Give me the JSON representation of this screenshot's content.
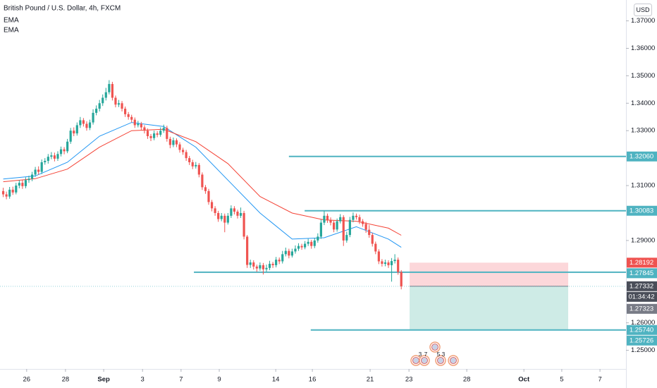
{
  "chart_data": {
    "type": "candlestick",
    "title": "British Pound / U.S. Dollar, 4h, FXCM",
    "indicators": [
      "EMA",
      "EMA"
    ],
    "currency_button": "USD",
    "colors": {
      "up": "#26a69a",
      "down": "#ef5350"
    },
    "xlim": [
      -1,
      194
    ],
    "ylim": [
      1.2432,
      1.3776
    ],
    "xticks": [
      {
        "value": 7.3,
        "label": "26"
      },
      {
        "value": 19.4,
        "label": "28"
      },
      {
        "value": 31.3,
        "label": "Sep"
      },
      {
        "value": 43.4,
        "label": "3"
      },
      {
        "value": 55.4,
        "label": "7"
      },
      {
        "value": 67.3,
        "label": "9"
      },
      {
        "value": 84.9,
        "label": "14"
      },
      {
        "value": 96.3,
        "label": "16"
      },
      {
        "value": 114.3,
        "label": "21"
      },
      {
        "value": 126.4,
        "label": "23"
      },
      {
        "value": 144.4,
        "label": "28"
      },
      {
        "value": 162.2,
        "label": "Oct"
      },
      {
        "value": 174,
        "label": "5"
      },
      {
        "value": 185.9,
        "label": "7"
      }
    ],
    "yticks": [
      {
        "value": 1.37,
        "label": "1.37000"
      },
      {
        "value": 1.36,
        "label": "1.36000"
      },
      {
        "value": 1.35,
        "label": "1.35000"
      },
      {
        "value": 1.34,
        "label": "1.34000"
      },
      {
        "value": 1.33,
        "label": "1.33000"
      },
      {
        "value": 1.31,
        "label": "1.31000"
      },
      {
        "value": 1.29,
        "label": "1.29000"
      },
      {
        "value": 1.26,
        "label": "1.26000"
      },
      {
        "value": 1.25,
        "label": "1.25000"
      }
    ],
    "ohlc": [
      [
        1.308,
        1.3092,
        1.3058,
        1.3068
      ],
      [
        1.3068,
        1.3078,
        1.305,
        1.306
      ],
      [
        1.306,
        1.3095,
        1.3052,
        1.3085
      ],
      [
        1.3085,
        1.3096,
        1.3066,
        1.3075
      ],
      [
        1.3075,
        1.311,
        1.3068,
        1.31
      ],
      [
        1.31,
        1.312,
        1.309,
        1.311
      ],
      [
        1.311,
        1.3122,
        1.3088,
        1.3098
      ],
      [
        1.3098,
        1.313,
        1.309,
        1.312
      ],
      [
        1.312,
        1.3136,
        1.311,
        1.3125
      ],
      [
        1.3125,
        1.315,
        1.3116,
        1.314
      ],
      [
        1.314,
        1.3168,
        1.3132,
        1.3158
      ],
      [
        1.3158,
        1.317,
        1.314,
        1.315
      ],
      [
        1.315,
        1.3195,
        1.3142,
        1.3185
      ],
      [
        1.3185,
        1.32,
        1.3176,
        1.319
      ],
      [
        1.319,
        1.3215,
        1.318,
        1.3205
      ],
      [
        1.3205,
        1.3222,
        1.3196,
        1.321
      ],
      [
        1.321,
        1.322,
        1.3188,
        1.3198
      ],
      [
        1.3198,
        1.3225,
        1.319,
        1.3215
      ],
      [
        1.3215,
        1.3242,
        1.3206,
        1.3232
      ],
      [
        1.3232,
        1.324,
        1.3214,
        1.3225
      ],
      [
        1.3225,
        1.327,
        1.3218,
        1.326
      ],
      [
        1.326,
        1.331,
        1.3252,
        1.33
      ],
      [
        1.33,
        1.3312,
        1.328,
        1.329
      ],
      [
        1.329,
        1.333,
        1.3282,
        1.332
      ],
      [
        1.332,
        1.335,
        1.331,
        1.3338
      ],
      [
        1.3338,
        1.3346,
        1.3315,
        1.3325
      ],
      [
        1.3325,
        1.3334,
        1.33,
        1.331
      ],
      [
        1.331,
        1.334,
        1.3302,
        1.333
      ],
      [
        1.333,
        1.3378,
        1.3322,
        1.3365
      ],
      [
        1.3365,
        1.3392,
        1.3356,
        1.338
      ],
      [
        1.338,
        1.3412,
        1.337,
        1.34
      ],
      [
        1.34,
        1.3432,
        1.339,
        1.342
      ],
      [
        1.342,
        1.3456,
        1.341,
        1.344
      ],
      [
        1.344,
        1.3484,
        1.3432,
        1.347
      ],
      [
        1.347,
        1.3478,
        1.341,
        1.342
      ],
      [
        1.342,
        1.3428,
        1.3385,
        1.3395
      ],
      [
        1.3395,
        1.3412,
        1.3386,
        1.34
      ],
      [
        1.34,
        1.3408,
        1.337,
        1.338
      ],
      [
        1.338,
        1.3388,
        1.335,
        1.336
      ],
      [
        1.336,
        1.3368,
        1.334,
        1.335
      ],
      [
        1.335,
        1.3358,
        1.333,
        1.334
      ],
      [
        1.334,
        1.3348,
        1.331,
        1.332
      ],
      [
        1.332,
        1.3336,
        1.3312,
        1.3325
      ],
      [
        1.3325,
        1.3332,
        1.3302,
        1.3312
      ],
      [
        1.3312,
        1.332,
        1.329,
        1.33
      ],
      [
        1.33,
        1.3308,
        1.327,
        1.328
      ],
      [
        1.328,
        1.3288,
        1.3262,
        1.3273
      ],
      [
        1.3273,
        1.33,
        1.3265,
        1.329
      ],
      [
        1.329,
        1.3298,
        1.3276,
        1.3285
      ],
      [
        1.3285,
        1.3312,
        1.3278,
        1.33
      ],
      [
        1.33,
        1.3322,
        1.3292,
        1.331
      ],
      [
        1.331,
        1.3318,
        1.326,
        1.327
      ],
      [
        1.327,
        1.3278,
        1.3236,
        1.3248
      ],
      [
        1.3248,
        1.3275,
        1.324,
        1.3265
      ],
      [
        1.3265,
        1.3272,
        1.324,
        1.325
      ],
      [
        1.325,
        1.3258,
        1.322,
        1.323
      ],
      [
        1.323,
        1.3238,
        1.3212,
        1.3222
      ],
      [
        1.3222,
        1.323,
        1.319,
        1.32
      ],
      [
        1.32,
        1.3208,
        1.3175,
        1.3185
      ],
      [
        1.3185,
        1.3194,
        1.316,
        1.317
      ],
      [
        1.317,
        1.3186,
        1.3162,
        1.3175
      ],
      [
        1.3175,
        1.3182,
        1.313,
        1.314
      ],
      [
        1.314,
        1.3148,
        1.3084,
        1.3094
      ],
      [
        1.3094,
        1.3102,
        1.307,
        1.308
      ],
      [
        1.308,
        1.3088,
        1.303,
        1.304
      ],
      [
        1.304,
        1.3048,
        1.3006,
        1.3017
      ],
      [
        1.3017,
        1.3025,
        1.299,
        1.3
      ],
      [
        1.3,
        1.3008,
        1.2968,
        1.2978
      ],
      [
        1.2978,
        1.3,
        1.297,
        1.299
      ],
      [
        1.299,
        1.2998,
        1.293,
        1.2965
      ],
      [
        1.2965,
        1.3,
        1.2958,
        1.299
      ],
      [
        1.299,
        1.3028,
        1.2982,
        1.3017
      ],
      [
        1.3017,
        1.3025,
        1.2995,
        1.3005
      ],
      [
        1.3005,
        1.3012,
        1.298,
        1.299
      ],
      [
        1.299,
        1.302,
        1.2982,
        1.3
      ],
      [
        1.3,
        1.3008,
        1.2904,
        1.2914
      ],
      [
        1.2914,
        1.292,
        1.28,
        1.2811
      ],
      [
        1.2811,
        1.283,
        1.28,
        1.282
      ],
      [
        1.282,
        1.2828,
        1.2794,
        1.2805
      ],
      [
        1.2805,
        1.2812,
        1.2786,
        1.2798
      ],
      [
        1.2798,
        1.282,
        1.279,
        1.281
      ],
      [
        1.281,
        1.2818,
        1.2776,
        1.2795
      ],
      [
        1.2795,
        1.2812,
        1.2786,
        1.28
      ],
      [
        1.28,
        1.2826,
        1.2792,
        1.2815
      ],
      [
        1.2815,
        1.2822,
        1.28,
        1.281
      ],
      [
        1.281,
        1.284,
        1.2802,
        1.283
      ],
      [
        1.283,
        1.2838,
        1.2814,
        1.2824
      ],
      [
        1.2824,
        1.2862,
        1.2816,
        1.285
      ],
      [
        1.285,
        1.2874,
        1.2842,
        1.2862
      ],
      [
        1.2862,
        1.287,
        1.2835,
        1.2845
      ],
      [
        1.2845,
        1.287,
        1.2838,
        1.286
      ],
      [
        1.286,
        1.2882,
        1.2852,
        1.287
      ],
      [
        1.287,
        1.289,
        1.2862,
        1.288
      ],
      [
        1.288,
        1.2888,
        1.2866,
        1.2875
      ],
      [
        1.2875,
        1.2898,
        1.2868,
        1.2888
      ],
      [
        1.2888,
        1.2906,
        1.288,
        1.2895
      ],
      [
        1.2895,
        1.2902,
        1.287,
        1.288
      ],
      [
        1.288,
        1.291,
        1.2872,
        1.29
      ],
      [
        1.29,
        1.2926,
        1.2892,
        1.2914
      ],
      [
        1.2914,
        1.2976,
        1.2906,
        1.2965
      ],
      [
        1.2965,
        1.3008,
        1.2956,
        1.299
      ],
      [
        1.299,
        1.2998,
        1.2964,
        1.2975
      ],
      [
        1.2975,
        1.2984,
        1.2955,
        1.2965
      ],
      [
        1.2965,
        1.2972,
        1.293,
        1.294
      ],
      [
        1.294,
        1.298,
        1.2932,
        1.297
      ],
      [
        1.297,
        1.2996,
        1.2962,
        1.2985
      ],
      [
        1.2985,
        1.2992,
        1.288,
        1.29
      ],
      [
        1.29,
        1.2932,
        1.2892,
        1.292
      ],
      [
        1.292,
        1.2986,
        1.2912,
        1.2975
      ],
      [
        1.2975,
        1.3002,
        1.2966,
        1.299
      ],
      [
        1.299,
        1.2998,
        1.2976,
        1.2985
      ],
      [
        1.2985,
        1.2994,
        1.296,
        1.297
      ],
      [
        1.297,
        1.2978,
        1.295,
        1.296
      ],
      [
        1.296,
        1.2968,
        1.2928,
        1.2939
      ],
      [
        1.2939,
        1.2956,
        1.291,
        1.292
      ],
      [
        1.292,
        1.2928,
        1.2878,
        1.2888
      ],
      [
        1.2888,
        1.2896,
        1.285,
        1.286
      ],
      [
        1.286,
        1.2868,
        1.2814,
        1.2824
      ],
      [
        1.2824,
        1.2832,
        1.2805,
        1.2815
      ],
      [
        1.2815,
        1.283,
        1.2806,
        1.282
      ],
      [
        1.282,
        1.2828,
        1.28,
        1.281
      ],
      [
        1.281,
        1.2836,
        1.275,
        1.2825
      ],
      [
        1.2825,
        1.285,
        1.2816,
        1.283
      ],
      [
        1.283,
        1.2838,
        1.2775,
        1.2785
      ],
      [
        1.2785,
        1.2792,
        1.2722,
        1.2733
      ]
    ],
    "series": [
      {
        "color": "#2196f3",
        "x": [
          0,
          10,
          20,
          30,
          40,
          50,
          60,
          70,
          80,
          90,
          100,
          110,
          120,
          124
        ],
        "values": [
          1.3124,
          1.3135,
          1.3185,
          1.328,
          1.333,
          1.3315,
          1.324,
          1.312,
          1.3,
          1.2905,
          1.291,
          1.295,
          1.2905,
          1.2875
        ]
      },
      {
        "color": "#f44336",
        "x": [
          0,
          10,
          20,
          30,
          40,
          50,
          60,
          70,
          80,
          90,
          100,
          110,
          120,
          124
        ],
        "values": [
          1.3114,
          1.3125,
          1.316,
          1.324,
          1.33,
          1.3305,
          1.326,
          1.318,
          1.306,
          1.3,
          1.2975,
          1.297,
          1.2945,
          1.2919
        ]
      }
    ],
    "hlines": [
      {
        "value": 1.3206,
        "from": 89,
        "color": "#4fb3c1"
      },
      {
        "value": 1.30083,
        "from": 93.9,
        "color": "#4fb3c1"
      },
      {
        "value": 1.27845,
        "from": 59.4,
        "color": "#4fb3c1"
      },
      {
        "value": 1.2574,
        "from": 95.8,
        "color": "#4fb3c1"
      }
    ],
    "position": {
      "entry": 1.27332,
      "stop": 1.28192,
      "target": 1.2574,
      "from": 126.6,
      "to": 176
    },
    "price_tags": [
      {
        "value": 1.3206,
        "label": "1.32060",
        "color": "#4fb3c1"
      },
      {
        "value": 1.30083,
        "label": "1.30083",
        "color": "#4fb3c1"
      },
      {
        "value": 1.28192,
        "label": "1.28192",
        "color": "#ef5350"
      },
      {
        "value": 1.27845,
        "label": "1.27845",
        "color": "#4fb3c1"
      },
      {
        "value": 1.27332,
        "label": "1.27332",
        "color": "#4a4e59"
      },
      {
        "value": 1.27323,
        "label": "1.27323",
        "color": "#787b86"
      },
      {
        "value": 1.2574,
        "label": "1.25740",
        "color": "#4fb3c1"
      },
      {
        "value": 1.25726,
        "label": "1.25726",
        "color": "#4fb3c1"
      }
    ],
    "countdown": "01:34:42",
    "event_labels": [
      "3",
      "7",
      "5",
      "3"
    ]
  }
}
